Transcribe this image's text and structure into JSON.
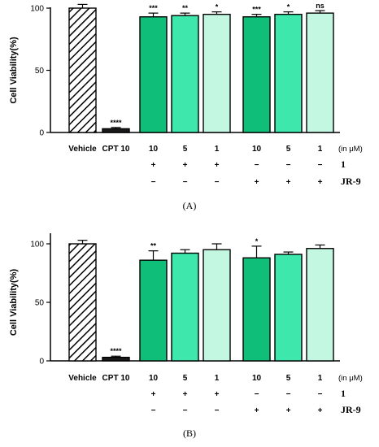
{
  "chart_data": [
    {
      "type": "bar",
      "panel_label": "(A)",
      "ylabel": "Cell Viability(%)",
      "ylim": [
        0,
        100
      ],
      "yticks": [
        "0",
        "50",
        "100"
      ],
      "categories": [
        "Vehicle",
        "CPT 10",
        "10",
        "5",
        "1",
        "10",
        "5",
        "1"
      ],
      "unit_label": "(in μM)",
      "values": [
        100,
        3,
        93,
        94,
        95,
        93,
        95,
        96
      ],
      "errors": [
        3,
        1,
        3,
        2,
        2,
        2,
        2,
        2
      ],
      "significance": [
        "",
        "****",
        "***",
        "**",
        "*",
        "***",
        "*",
        "ns"
      ],
      "fills": [
        "hatch",
        "#1a1a1a",
        "#0fbe78",
        "#3ee8ac",
        "#c3f7e2",
        "#0fbe78",
        "#3ee8ac",
        "#c3f7e2"
      ],
      "treatment_rows": [
        {
          "label": "1",
          "signs": [
            "",
            "",
            "+",
            "+",
            "+",
            "−",
            "−",
            "−"
          ]
        },
        {
          "label": "JR-9",
          "signs": [
            "",
            "",
            "−",
            "−",
            "−",
            "+",
            "+",
            "+"
          ]
        }
      ]
    },
    {
      "type": "bar",
      "panel_label": "(B)",
      "ylabel": "Cell Viability(%)",
      "ylim": [
        0,
        100
      ],
      "yticks": [
        "0",
        "50",
        "100"
      ],
      "categories": [
        "Vehicle",
        "CPT 10",
        "10",
        "5",
        "1",
        "10",
        "5",
        "1"
      ],
      "unit_label": "(in μM)",
      "values": [
        100,
        3,
        86,
        92,
        95,
        88,
        91,
        96
      ],
      "errors": [
        3,
        1,
        8,
        3,
        5,
        10,
        2,
        3
      ],
      "significance": [
        "",
        "****",
        "**",
        "",
        "",
        "*",
        "",
        ""
      ],
      "fills": [
        "hatch",
        "#1a1a1a",
        "#0fbe78",
        "#3ee8ac",
        "#c3f7e2",
        "#0fbe78",
        "#3ee8ac",
        "#c3f7e2"
      ],
      "treatment_rows": [
        {
          "label": "1",
          "signs": [
            "",
            "",
            "+",
            "+",
            "+",
            "−",
            "−",
            "−"
          ]
        },
        {
          "label": "JR-9",
          "signs": [
            "",
            "",
            "−",
            "−",
            "−",
            "+",
            "+",
            "+"
          ]
        }
      ]
    }
  ]
}
